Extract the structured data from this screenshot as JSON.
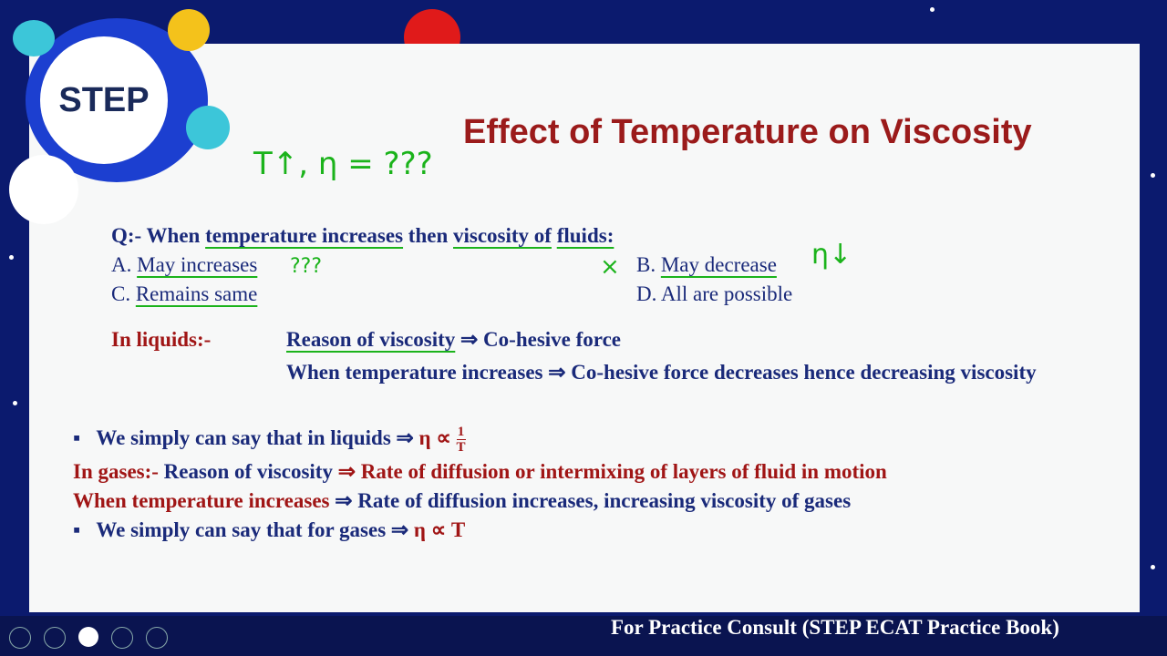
{
  "logo": {
    "text": "STEP"
  },
  "slide": {
    "title": "Effect of Temperature on Viscosity",
    "question": {
      "lead": "Q:- When",
      "a": "temperature increases",
      "b": "then",
      "c": "viscosity of",
      "d": "fluids:"
    },
    "options": [
      "A.",
      "May increases",
      "B.",
      "May decrease",
      "C.",
      "Remains same",
      "D.",
      "All are possible"
    ],
    "liquids": {
      "heading": "In liquids:-",
      "reason": "Reason of viscosity",
      "reason_rest": "⇒ Co-hesive force",
      "effect": "When temperature increases ⇒ Co-hesive force decreases hence decreasing viscosity",
      "bullet": "We simply can say that in liquids ⇒",
      "symbol": "η ∝",
      "numerator": "1",
      "denominator": "T"
    },
    "gases": {
      "heading": "In gases:-",
      "reason": "Reason of viscosity",
      "reason_rest": "⇒ Rate of diffusion or intermixing of layers of fluid in motion",
      "effect_lead": "When temperature increases",
      "effect_rest": "⇒ Rate of diffusion increases, increasing viscosity of gases",
      "bullet": "We simply can say that for gases ⇒",
      "symbol": "η ∝ T"
    },
    "annotations": [
      "T↑, η = ???",
      "???",
      "η↓",
      "×"
    ]
  },
  "footer": "For Practice Consult (STEP ECAT Practice Book)"
}
